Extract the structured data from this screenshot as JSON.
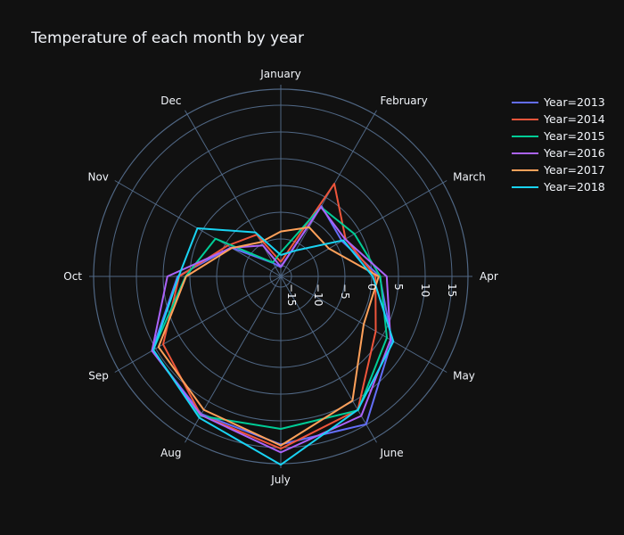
{
  "chart_data": {
    "type": "line",
    "subtype": "polar",
    "title": "Temperature of each month by year",
    "angular_categories": [
      "January",
      "February",
      "March",
      "Apr",
      "May",
      "June",
      "July",
      "Aug",
      "Sep",
      "Oct",
      "Nov",
      "Dec"
    ],
    "radial_ticks": [
      "−15",
      "−10",
      "−5",
      "0",
      "5",
      "10",
      "15"
    ],
    "radial_tick_values": [
      -15,
      -10,
      -5,
      0,
      5,
      10,
      15
    ],
    "radial_range": [
      -17,
      18
    ],
    "angular_direction": "clockwise",
    "rotation_start": "top",
    "legend_position": "top-right",
    "grid": true,
    "series": [
      {
        "name": "Year=2013",
        "color": "#636efa",
        "values": [
          -15.3,
          -1.8,
          -3.8,
          1.5,
          7.0,
          14.9,
          14.4,
          12.7,
          10.8,
          2.3,
          -6.2,
          -14.1
        ]
      },
      {
        "name": "Year=2014",
        "color": "#ef553b",
        "values": [
          -14.3,
          3.0,
          -3.0,
          0.7,
          3.5,
          11.8,
          15.2,
          12.9,
          8.4,
          2.0,
          -5.5,
          -8.0
        ]
      },
      {
        "name": "Year=2015",
        "color": "#00cc96",
        "values": [
          -12.5,
          -2.0,
          -1.1,
          1.6,
          5.9,
          11.9,
          11.5,
          13.1,
          10.6,
          0.8,
          -2.9,
          -14.0
        ]
      },
      {
        "name": "Year=2016",
        "color": "#ab63fa",
        "values": [
          -15.2,
          -2.0,
          -3.1,
          2.8,
          6.7,
          13.1,
          15.9,
          12.9,
          10.8,
          4.2,
          -6.3,
          -10.3
        ]
      },
      {
        "name": "Year=2017",
        "color": "#ffa15a",
        "values": [
          -8.6,
          -6.4,
          -6.6,
          1.3,
          0.9,
          9.8,
          14.6,
          11.8,
          9.4,
          0.7,
          -6.4,
          -9.6
        ]
      },
      {
        "name": "Year=2018",
        "color": "#19d3f3",
        "values": [
          -13.0,
          -11.4,
          -3.5,
          0.2,
          7.3,
          11.8,
          18.2,
          13.5,
          10.5,
          2.1,
          1.0,
          -7.5
        ]
      }
    ]
  }
}
